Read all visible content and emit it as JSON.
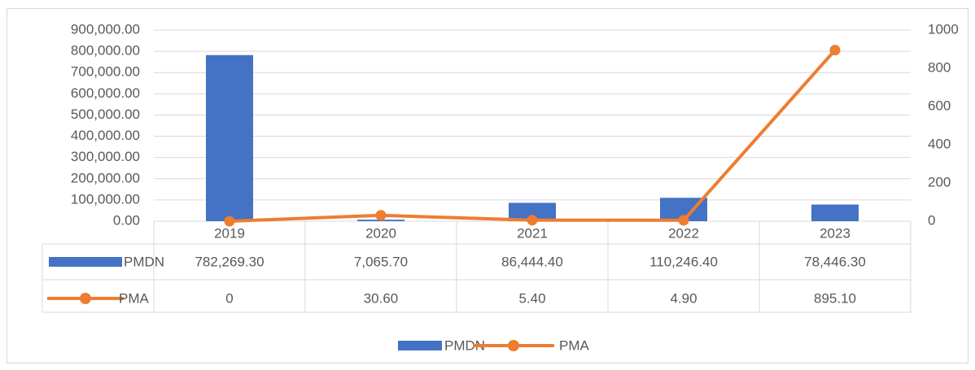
{
  "chart_data": {
    "type": "bar",
    "categories": [
      "2019",
      "2020",
      "2021",
      "2022",
      "2023"
    ],
    "series": [
      {
        "name": "PMDN",
        "type": "bar",
        "color": "#4472c4",
        "values": [
          782269.3,
          7065.7,
          86444.4,
          110246.4,
          78446.3
        ],
        "value_labels": [
          "782,269.30",
          "7,065.70",
          "86,444.40",
          "110,246.40",
          "78,446.30"
        ]
      },
      {
        "name": "PMA",
        "type": "line",
        "axis": "y2",
        "color": "#ed7d31",
        "values": [
          0,
          30.6,
          5.4,
          4.9,
          895.1
        ],
        "value_labels": [
          "0",
          "30.60",
          "5.40",
          "4.90",
          "895.10"
        ]
      }
    ],
    "ylim": [
      0,
      900000
    ],
    "yticks": [
      {
        "value": 0,
        "label": "0.00"
      },
      {
        "value": 100000,
        "label": "100,000.00"
      },
      {
        "value": 200000,
        "label": "200,000.00"
      },
      {
        "value": 300000,
        "label": "300,000.00"
      },
      {
        "value": 400000,
        "label": "400,000.00"
      },
      {
        "value": 500000,
        "label": "500,000.00"
      },
      {
        "value": 600000,
        "label": "600,000.00"
      },
      {
        "value": 700000,
        "label": "700,000.00"
      },
      {
        "value": 800000,
        "label": "800,000.00"
      },
      {
        "value": 900000,
        "label": "900,000.00"
      }
    ],
    "y2lim": [
      0,
      1000
    ],
    "y2ticks": [
      0,
      200,
      400,
      600,
      800,
      1000
    ],
    "grid": true,
    "legend": "bottom",
    "data_table": true
  }
}
